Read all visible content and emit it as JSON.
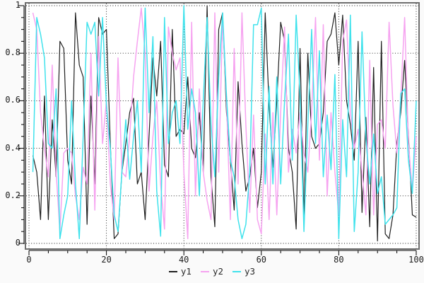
{
  "figure": {
    "background": "#fafafa",
    "plot_background": "#ffffff",
    "frame_color": "#6e6e6e",
    "grid_color": "#141414",
    "axis_color": "#000000"
  },
  "chart_data": {
    "type": "line",
    "title": "",
    "xlabel": "",
    "ylabel": "",
    "xlim": [
      0,
      100
    ],
    "ylim": [
      0,
      1
    ],
    "grid": "dotted at major ticks, both axes",
    "legend_position": "bottom-center",
    "x_tick_labels": [
      "0",
      "20",
      "40",
      "60",
      "80",
      "100"
    ],
    "x_tick_values": [
      0,
      20,
      40,
      60,
      80,
      100
    ],
    "x_minor_tick_step": 5,
    "y_tick_labels": [
      "0",
      "0.2",
      "0.4",
      "0.6",
      "0.8",
      "1"
    ],
    "y_tick_values": [
      0,
      0.2,
      0.4,
      0.6,
      0.8,
      1
    ],
    "y_minor_tick_step": 0.05,
    "x_start": 1,
    "x_step": 1,
    "n_points": 100,
    "series": [
      {
        "name": "y1",
        "color": "#1f1f1f",
        "values": [
          0.37,
          0.3,
          0.1,
          0.62,
          0.1,
          0.52,
          0.28,
          0.85,
          0.82,
          0.35,
          0.25,
          0.97,
          0.75,
          0.7,
          0.08,
          0.62,
          0.25,
          0.95,
          0.88,
          0.9,
          0.42,
          0.02,
          0.04,
          0.3,
          0.42,
          0.55,
          0.61,
          0.25,
          0.3,
          0.1,
          0.45,
          0.78,
          0.62,
          0.85,
          0.33,
          0.28,
          0.9,
          0.45,
          0.48,
          0.46,
          0.7,
          0.4,
          0.36,
          0.55,
          0.3,
          1.0,
          0.28,
          0.07,
          0.9,
          0.97,
          0.55,
          0.35,
          0.14,
          0.68,
          0.42,
          0.22,
          0.28,
          0.4,
          0.15,
          0.3,
          0.97,
          0.58,
          0.32,
          0.6,
          0.93,
          0.85,
          0.4,
          0.3,
          0.06,
          0.82,
          0.1,
          0.8,
          0.45,
          0.4,
          0.42,
          0.55,
          0.85,
          0.88,
          0.97,
          0.75,
          0.96,
          0.6,
          0.5,
          0.35,
          0.85,
          0.13,
          0.53,
          0.07,
          0.74,
          0.01,
          0.85,
          0.04,
          0.02,
          0.12,
          0.42,
          0.55,
          0.77,
          0.45,
          0.12,
          0.11
        ]
      },
      {
        "name": "y2",
        "color": "#f6a3f0",
        "values": [
          0.97,
          0.9,
          0.55,
          0.4,
          0.28,
          0.75,
          0.3,
          0.05,
          0.38,
          0.4,
          0.38,
          0.2,
          0.1,
          0.32,
          0.25,
          0.8,
          0.14,
          0.87,
          0.42,
          0.6,
          0.25,
          0.1,
          0.78,
          0.3,
          0.28,
          0.45,
          0.7,
          0.85,
          0.99,
          0.8,
          0.22,
          0.45,
          0.6,
          0.25,
          0.06,
          0.91,
          0.8,
          0.73,
          0.78,
          0.3,
          0.02,
          0.93,
          0.2,
          0.65,
          0.3,
          0.18,
          0.1,
          0.97,
          0.3,
          0.95,
          0.6,
          0.1,
          0.82,
          0.25,
          0.97,
          0.5,
          0.13,
          0.54,
          0.1,
          0.04,
          0.46,
          0.1,
          0.55,
          0.12,
          0.55,
          0.91,
          0.3,
          0.48,
          0.38,
          0.55,
          0.38,
          0.3,
          0.55,
          0.95,
          0.35,
          0.92,
          0.2,
          0.55,
          0.3,
          0.12,
          0.85,
          0.94,
          0.55,
          0.4,
          0.48,
          0.3,
          0.12,
          0.77,
          0.12,
          0.5,
          0.52,
          0.4,
          0.93,
          0.58,
          0.38,
          0.61,
          0.95,
          0.42,
          0.22,
          0.45
        ]
      },
      {
        "name": "y3",
        "color": "#40e2ec",
        "values": [
          0.3,
          0.95,
          0.88,
          0.78,
          0.42,
          0.4,
          0.65,
          0.02,
          0.12,
          0.2,
          0.6,
          0.25,
          0.02,
          0.45,
          0.93,
          0.88,
          0.93,
          0.62,
          0.95,
          0.58,
          0.4,
          0.12,
          0.05,
          0.3,
          0.52,
          0.27,
          0.45,
          0.6,
          0.3,
          0.99,
          0.55,
          0.87,
          0.22,
          0.03,
          0.95,
          0.42,
          0.55,
          0.6,
          0.42,
          1.0,
          0.48,
          0.65,
          0.55,
          0.2,
          0.6,
          0.95,
          0.5,
          0.28,
          0.7,
          0.97,
          0.62,
          0.35,
          0.28,
          0.1,
          0.02,
          0.08,
          0.3,
          0.92,
          0.92,
          0.99,
          0.25,
          0.66,
          0.25,
          0.7,
          0.25,
          0.6,
          0.88,
          0.35,
          0.96,
          0.62,
          0.05,
          0.5,
          0.9,
          0.42,
          0.81,
          0.28,
          0.54,
          0.31,
          0.71,
          0.02,
          0.52,
          0.28,
          0.96,
          0.05,
          0.3,
          0.89,
          0.44,
          0.25,
          0.46,
          0.21,
          0.28,
          0.08,
          0.1,
          0.12,
          0.15,
          0.63,
          0.65,
          0.35,
          0.21,
          0.6
        ]
      }
    ]
  }
}
